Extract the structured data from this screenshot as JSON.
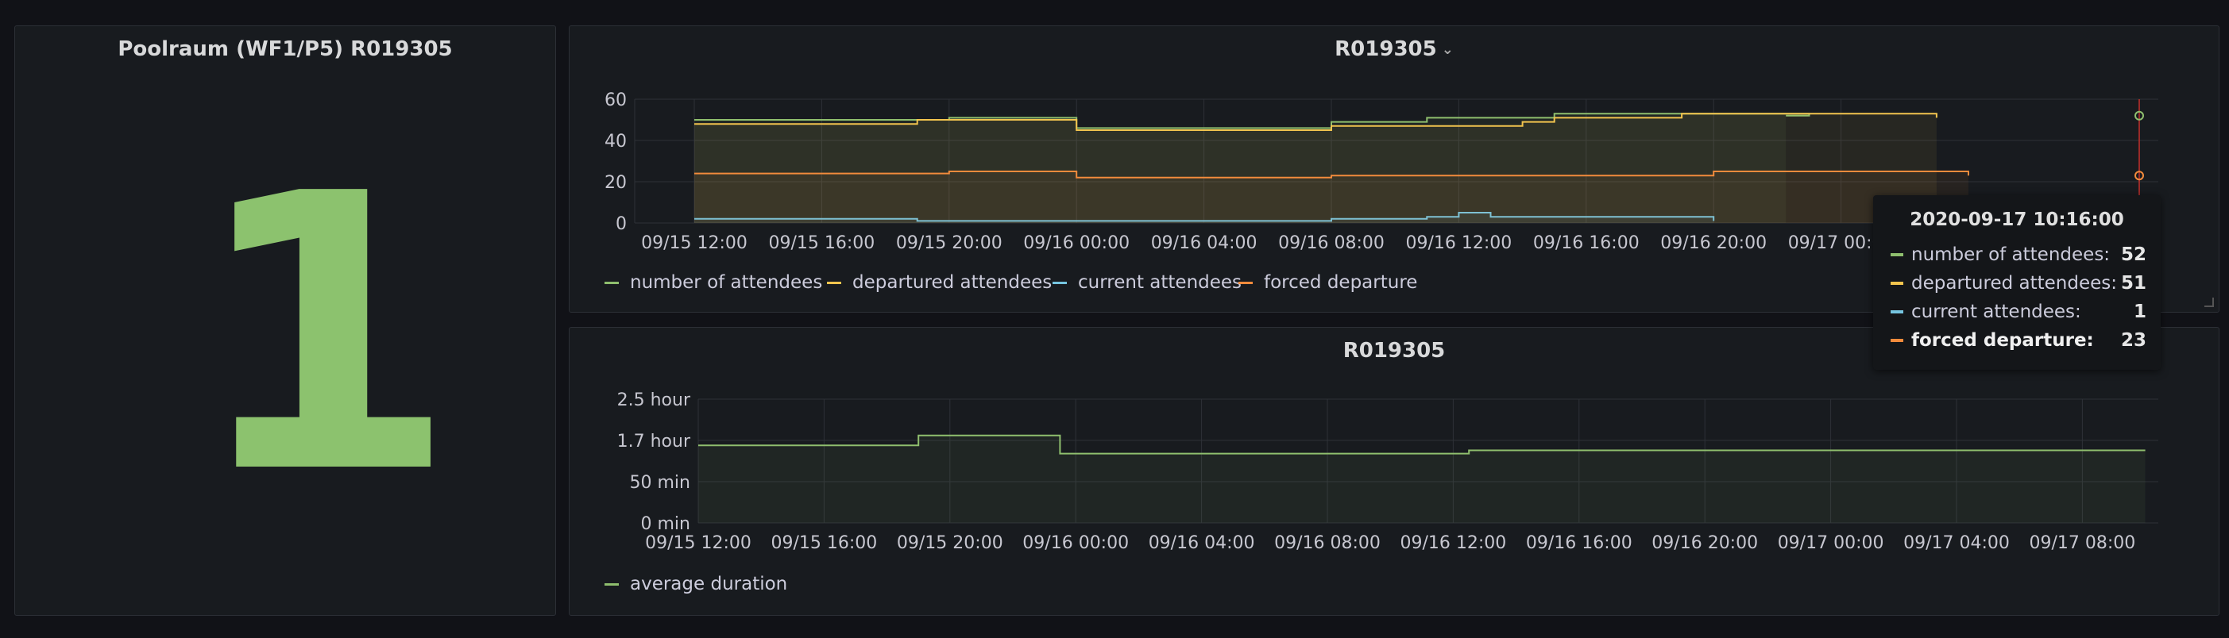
{
  "stat_panel": {
    "title": "Poolraum (WF1/P5) R019305",
    "value": "1",
    "color": "#8cc26e"
  },
  "top_panel": {
    "title": "R019305",
    "menu_icon": "chevron-down-icon"
  },
  "bottom_panel": {
    "title": "R019305"
  },
  "tooltip": {
    "time": "2020-09-17 10:16:00",
    "rows": [
      {
        "label": "number of attendees:",
        "value": "52",
        "color": "#8fbf6e"
      },
      {
        "label": "departured attendees:",
        "value": "51",
        "color": "#f2c44e"
      },
      {
        "label": "current attendees:",
        "value": "1",
        "color": "#76c5e0"
      },
      {
        "label": "forced departure:",
        "value": "23",
        "color": "#f28b3c"
      }
    ]
  },
  "chart_data": [
    {
      "type": "area",
      "x_ticks": [
        "09/15 12:00",
        "09/15 16:00",
        "09/15 20:00",
        "09/16 00:00",
        "09/16 04:00",
        "09/16 08:00",
        "09/16 12:00",
        "09/16 16:00",
        "09/16 20:00",
        "09/17 00:00"
      ],
      "y_ticks": [
        "0",
        "20",
        "40",
        "60"
      ],
      "ylim": [
        0,
        60
      ],
      "x_range_hours": [
        -1,
        35
      ],
      "grid": true,
      "legend_placement": "bottom-left",
      "series": [
        {
          "name": "number of attendees",
          "color": "#8fbf6e",
          "points": [
            [
              0,
              50
            ],
            [
              8,
              50
            ],
            [
              8,
              51
            ],
            [
              12,
              51
            ],
            [
              12,
              46
            ],
            [
              20,
              46
            ],
            [
              20,
              49
            ],
            [
              23,
              49
            ],
            [
              23,
              51
            ],
            [
              27,
              51
            ],
            [
              27,
              53
            ],
            [
              35,
              53
            ],
            [
              35,
              52
            ],
            [
              34.27,
              52
            ]
          ]
        },
        {
          "name": "departured attendees",
          "color": "#f2c44e",
          "points": [
            [
              0,
              48
            ],
            [
              7,
              48
            ],
            [
              7,
              50
            ],
            [
              12,
              50
            ],
            [
              12,
              45
            ],
            [
              20,
              45
            ],
            [
              20,
              47
            ],
            [
              26,
              47
            ],
            [
              26,
              49
            ],
            [
              27,
              49
            ],
            [
              27,
              51
            ],
            [
              31,
              51
            ],
            [
              31,
              53
            ],
            [
              39,
              53
            ],
            [
              39,
              51
            ],
            [
              48,
              51
            ]
          ]
        },
        {
          "name": "current attendees",
          "color": "#76c5e0",
          "points": [
            [
              0,
              2
            ],
            [
              7,
              2
            ],
            [
              7,
              1
            ],
            [
              20,
              1
            ],
            [
              20,
              2
            ],
            [
              23,
              2
            ],
            [
              23,
              3
            ],
            [
              24,
              3
            ],
            [
              24,
              5
            ],
            [
              25,
              5
            ],
            [
              25,
              3
            ],
            [
              32,
              3
            ],
            [
              32,
              1
            ],
            [
              48,
              1
            ]
          ]
        },
        {
          "name": "forced departure",
          "color": "#f28b3c",
          "points": [
            [
              0,
              24
            ],
            [
              8,
              24
            ],
            [
              8,
              25
            ],
            [
              12,
              25
            ],
            [
              12,
              22
            ],
            [
              20,
              22
            ],
            [
              20,
              23
            ],
            [
              32,
              23
            ],
            [
              32,
              25
            ],
            [
              40,
              25
            ],
            [
              40,
              23
            ],
            [
              48,
              23
            ]
          ]
        }
      ]
    },
    {
      "type": "area",
      "x_ticks": [
        "09/15 12:00",
        "09/15 16:00",
        "09/15 20:00",
        "09/16 00:00",
        "09/16 04:00",
        "09/16 08:00",
        "09/16 12:00",
        "09/16 16:00",
        "09/16 20:00",
        "09/17 00:00",
        "09/17 04:00",
        "09/17 08:00"
      ],
      "y_ticks": [
        "0 min",
        "50 min",
        "1.7 hour",
        "2.5 hour"
      ],
      "ylim": [
        0,
        150
      ],
      "grid": true,
      "legend_placement": "bottom-left",
      "series": [
        {
          "name": "average duration",
          "color": "#8fbf6e",
          "points": [
            [
              0,
              94
            ],
            [
              7,
              94
            ],
            [
              7,
              106
            ],
            [
              11.5,
              106
            ],
            [
              11.5,
              84
            ],
            [
              24.5,
              84
            ],
            [
              24.5,
              88
            ],
            [
              46,
              88
            ]
          ]
        }
      ]
    }
  ]
}
